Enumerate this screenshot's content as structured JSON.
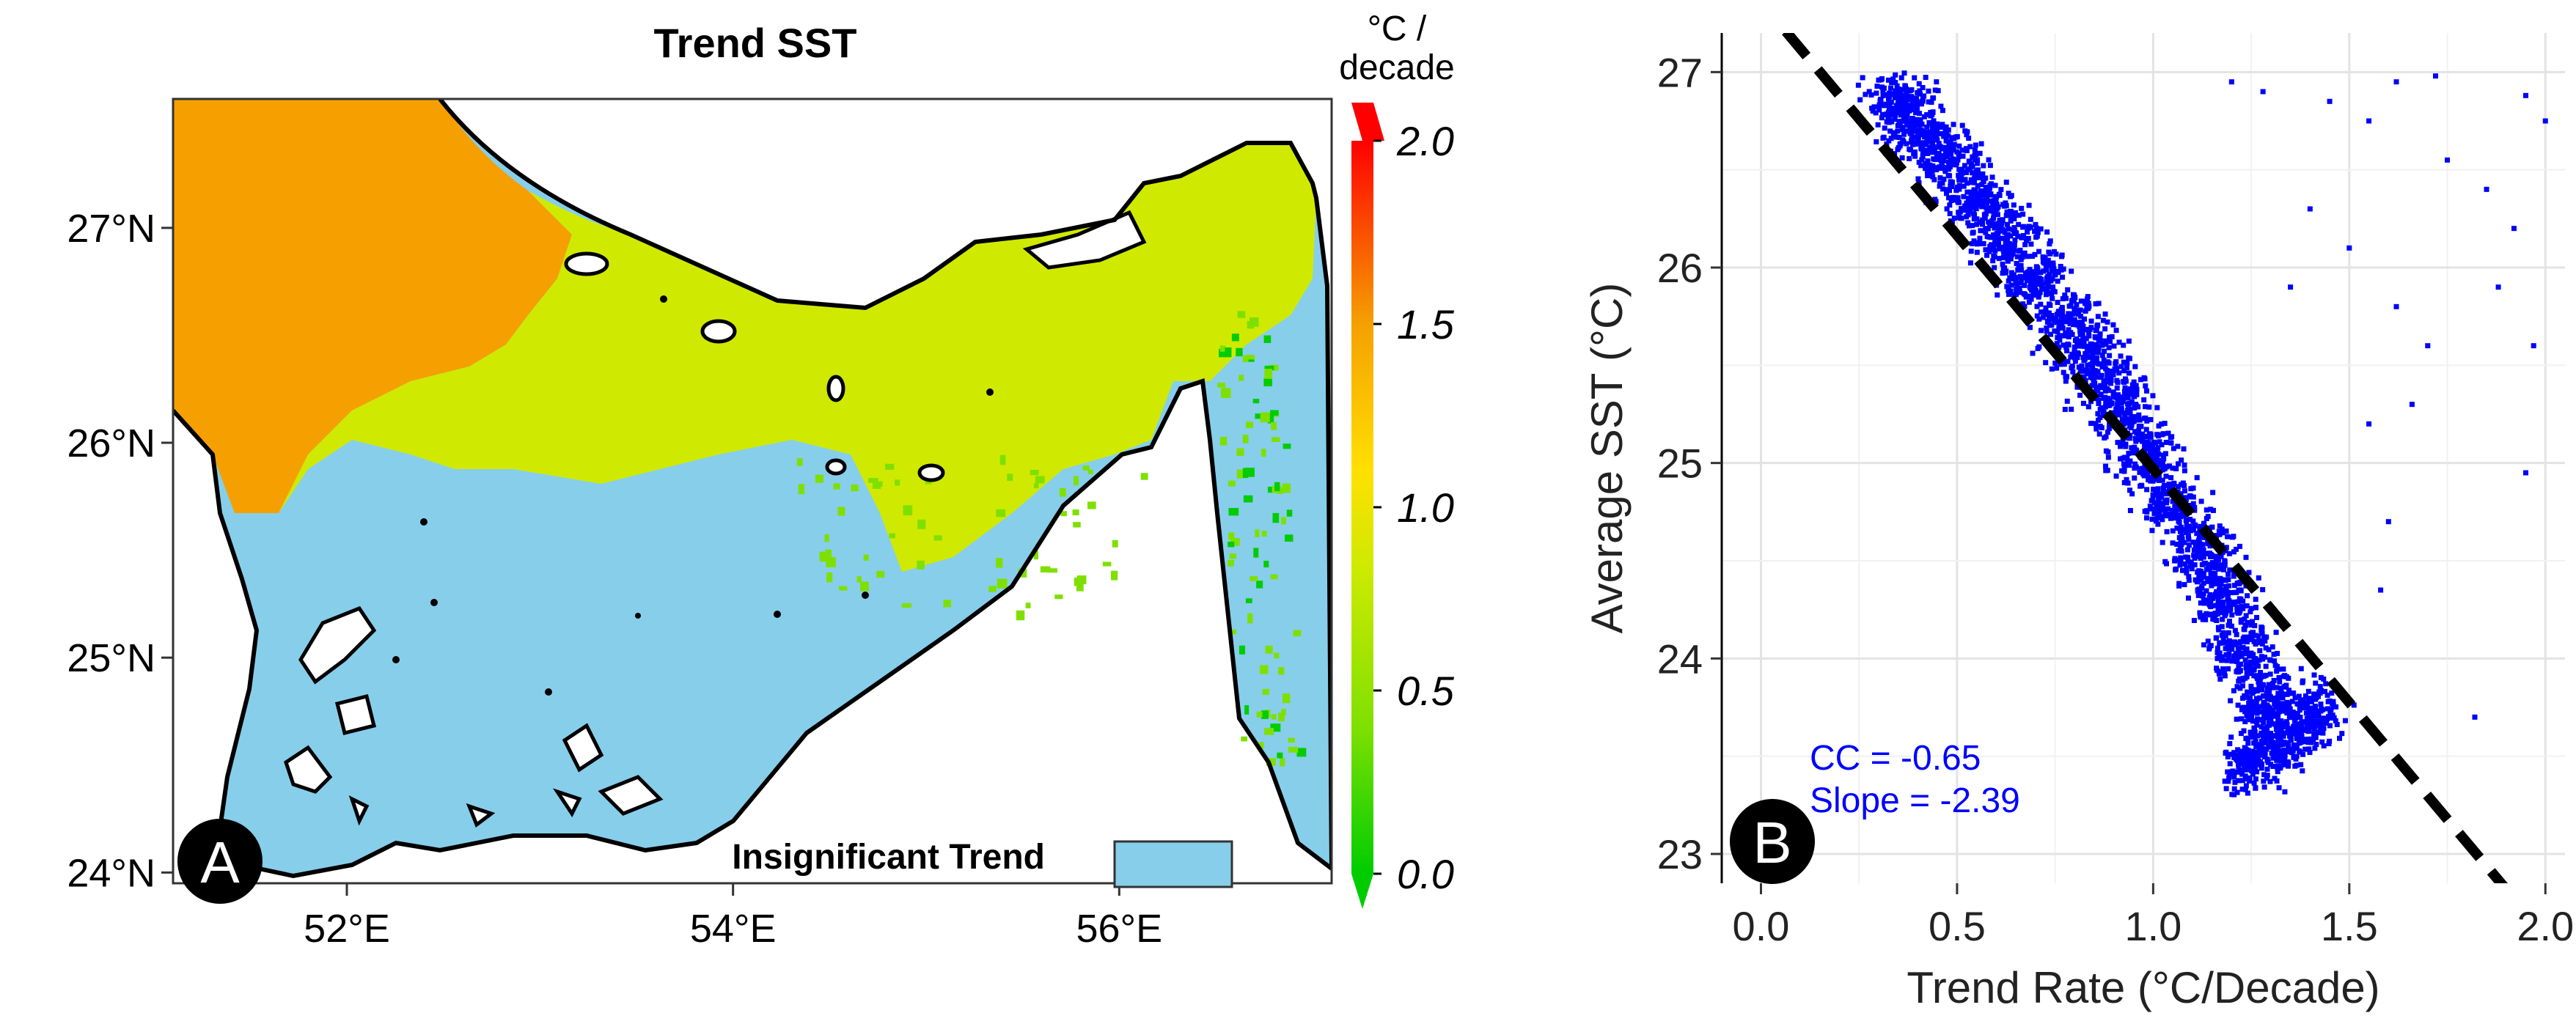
{
  "colors": {
    "insignificant": "#87CEEB",
    "land": "#ffffff",
    "coast": "#000000",
    "scatter_points": "#0000FF",
    "regression_line": "#000000",
    "stat_text": "#0000FF",
    "colorbar_stops": [
      "#00CC00",
      "#7FE000",
      "#CFEA00",
      "#FFE000",
      "#F5A000",
      "#FF0000"
    ]
  },
  "chart_data": [
    {
      "type": "heatmap",
      "panel": "A",
      "title": "Trend SST",
      "x_tick_labels": [
        "52°E",
        "54°E",
        "56°E"
      ],
      "y_tick_labels": [
        "24°N",
        "25°N",
        "26°N",
        "27°N"
      ],
      "xlim": [
        51.1,
        57.1
      ],
      "ylim": [
        23.95,
        27.6
      ],
      "colorbar": {
        "unit_line1": "°C /",
        "unit_line2": "decade",
        "range": [
          0.0,
          2.0
        ],
        "tick_labels": [
          "0.0",
          "0.5",
          "1.0",
          "1.5",
          "2.0"
        ]
      },
      "legend": {
        "label": "Insignificant  Trend",
        "placement": "bottom"
      }
    },
    {
      "type": "scatter",
      "panel": "B",
      "xlabel": "Trend Rate (°C/Decade)",
      "ylabel": "Average SST (°C)",
      "xlim": [
        -0.1,
        2.05
      ],
      "ylim": [
        22.85,
        27.2
      ],
      "x_tick_labels": [
        "0.0",
        "0.5",
        "1.0",
        "1.5",
        "2.0"
      ],
      "y_tick_labels": [
        "23",
        "24",
        "25",
        "26",
        "27"
      ],
      "grid": true,
      "annotations": [
        "CC = -0.65",
        "Slope = -2.39"
      ],
      "regression": {
        "slope": -2.39,
        "intercept": 27.36,
        "style": "dashed"
      },
      "point_cloud": [
        {
          "x": 0.35,
          "y": 26.85
        },
        {
          "x": 0.4,
          "y": 26.7
        },
        {
          "x": 0.48,
          "y": 26.55
        },
        {
          "x": 0.55,
          "y": 26.35
        },
        {
          "x": 0.62,
          "y": 26.15
        },
        {
          "x": 0.7,
          "y": 25.95
        },
        {
          "x": 0.78,
          "y": 25.7
        },
        {
          "x": 0.85,
          "y": 25.5
        },
        {
          "x": 0.92,
          "y": 25.3
        },
        {
          "x": 0.98,
          "y": 25.05
        },
        {
          "x": 1.05,
          "y": 24.8
        },
        {
          "x": 1.12,
          "y": 24.55
        },
        {
          "x": 1.18,
          "y": 24.3
        },
        {
          "x": 1.22,
          "y": 24.05
        },
        {
          "x": 1.28,
          "y": 23.8
        },
        {
          "x": 1.32,
          "y": 23.6
        },
        {
          "x": 1.25,
          "y": 23.45
        },
        {
          "x": 1.4,
          "y": 23.7
        }
      ],
      "outliers": [
        {
          "x": 1.2,
          "y": 26.95
        },
        {
          "x": 1.28,
          "y": 26.9
        },
        {
          "x": 1.45,
          "y": 26.85
        },
        {
          "x": 1.55,
          "y": 26.75
        },
        {
          "x": 1.62,
          "y": 26.95
        },
        {
          "x": 1.72,
          "y": 26.98
        },
        {
          "x": 1.75,
          "y": 26.55
        },
        {
          "x": 1.85,
          "y": 26.4
        },
        {
          "x": 1.95,
          "y": 26.88
        },
        {
          "x": 2.0,
          "y": 26.75
        },
        {
          "x": 1.92,
          "y": 26.2
        },
        {
          "x": 1.88,
          "y": 25.9
        },
        {
          "x": 1.97,
          "y": 25.6
        },
        {
          "x": 1.95,
          "y": 24.95
        },
        {
          "x": 1.62,
          "y": 25.8
        },
        {
          "x": 1.7,
          "y": 25.6
        },
        {
          "x": 1.55,
          "y": 25.2
        },
        {
          "x": 1.6,
          "y": 24.7
        },
        {
          "x": 1.82,
          "y": 23.7
        },
        {
          "x": 1.4,
          "y": 26.3
        },
        {
          "x": 1.35,
          "y": 25.9
        },
        {
          "x": 1.5,
          "y": 26.1
        },
        {
          "x": 1.66,
          "y": 25.3
        },
        {
          "x": 1.58,
          "y": 24.35
        }
      ]
    }
  ]
}
